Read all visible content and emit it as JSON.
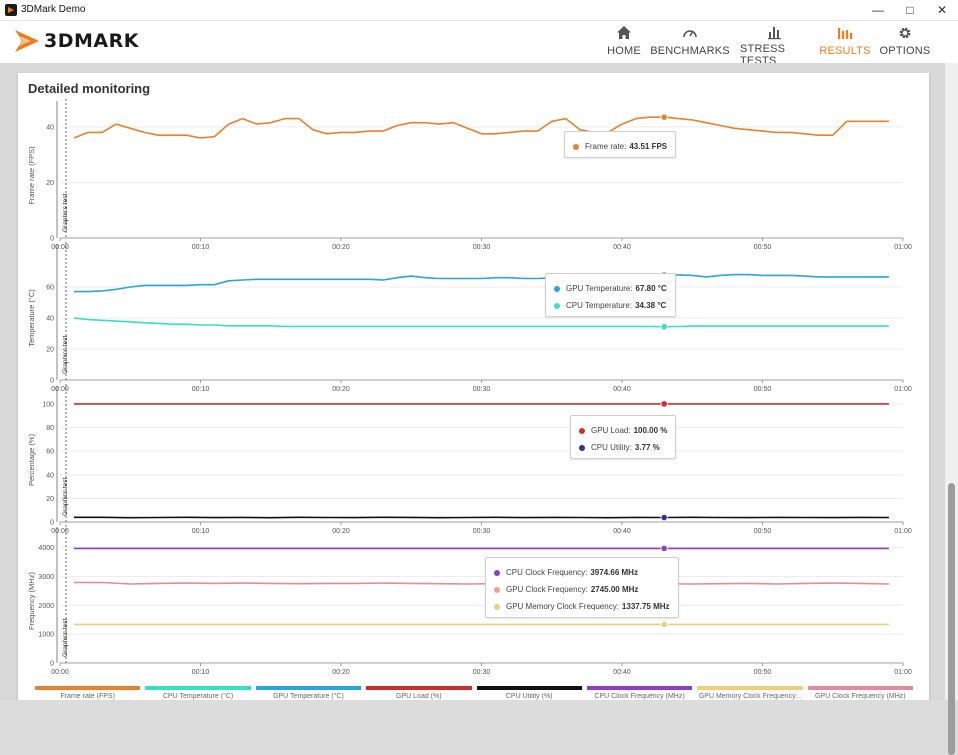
{
  "window": {
    "title": "3DMark Demo"
  },
  "brand": {
    "name": "3DMARK",
    "accent": "#f07d1a"
  },
  "nav": [
    {
      "label": "HOME",
      "icon": "home-icon"
    },
    {
      "label": "BENCHMARKS",
      "icon": "gauge-icon"
    },
    {
      "label": "STRESS TESTS",
      "icon": "bars-icon"
    },
    {
      "label": "RESULTS",
      "icon": "results-icon",
      "active": true
    },
    {
      "label": "OPTIONS",
      "icon": "gear-icon"
    }
  ],
  "page": {
    "title": "Detailed monitoring"
  },
  "chart_data": [
    {
      "type": "line",
      "ylabel": "Frame rate (FPS)",
      "section_label": "Graphics test",
      "ylim": [
        0,
        45
      ],
      "yticks": [
        0,
        20,
        40
      ],
      "xticks": [
        "00:00",
        "00:10",
        "00:20",
        "00:30",
        "00:40",
        "00:50",
        "01:00"
      ],
      "series": [
        {
          "name": "Frame rate",
          "color": "#e9822c",
          "x": [
            1,
            2,
            3,
            4,
            5,
            6,
            7,
            8,
            9,
            10,
            11,
            12,
            13,
            14,
            15,
            16,
            17,
            18,
            19,
            20,
            21,
            22,
            23,
            24,
            25,
            26,
            27,
            28,
            29,
            30,
            31,
            32,
            33,
            34,
            35,
            36,
            37,
            38,
            39,
            40,
            41,
            42,
            43,
            44,
            45,
            46,
            47,
            48,
            49,
            50,
            51,
            52,
            53,
            54,
            55,
            56,
            57,
            58,
            59
          ],
          "y": [
            36,
            38,
            38,
            41,
            39.5,
            38,
            37,
            37,
            37,
            36,
            36.5,
            41,
            43,
            41,
            41.5,
            43,
            43,
            39,
            37.5,
            38,
            38,
            38.5,
            38.5,
            40.5,
            41.5,
            41.5,
            41,
            41.5,
            39.5,
            37.5,
            37.5,
            38,
            38.5,
            38.5,
            42,
            43,
            39,
            38,
            38,
            41,
            43,
            43.5,
            43.51,
            43,
            42.5,
            41.5,
            40.5,
            39.5,
            39,
            38.5,
            38,
            38,
            37.5,
            37,
            37,
            42,
            42,
            42,
            42
          ]
        }
      ],
      "tooltip": [
        {
          "label": "Frame rate:",
          "value": "43.51 FPS",
          "color": "#e9822c"
        }
      ]
    },
    {
      "type": "line",
      "ylabel": "Temperature (°C)",
      "section_label": "Graphics test",
      "ylim": [
        0,
        80
      ],
      "yticks": [
        0,
        20,
        40,
        60
      ],
      "xticks": [
        "00:00",
        "00:10",
        "00:20",
        "00:30",
        "00:40",
        "00:50",
        "01:00"
      ],
      "series": [
        {
          "name": "GPU Temperature",
          "color": "#2aa5de",
          "x": [
            1,
            2,
            3,
            4,
            5,
            6,
            7,
            8,
            9,
            10,
            11,
            12,
            13,
            14,
            15,
            16,
            17,
            18,
            19,
            20,
            21,
            22,
            23,
            24,
            25,
            26,
            27,
            28,
            29,
            30,
            31,
            32,
            33,
            34,
            35,
            36,
            37,
            38,
            39,
            40,
            41,
            42,
            43,
            44,
            45,
            46,
            47,
            48,
            49,
            50,
            51,
            52,
            53,
            54,
            55,
            56,
            57,
            58,
            59
          ],
          "y": [
            57,
            57,
            57.5,
            58.5,
            60,
            61,
            61,
            61,
            61,
            61.5,
            61.5,
            64,
            64.5,
            65,
            65,
            65,
            65,
            65,
            65,
            65,
            65,
            65,
            64.5,
            66,
            67,
            66,
            65.5,
            65.5,
            65.5,
            65.5,
            66,
            66,
            65.5,
            65.5,
            66,
            66,
            67,
            68,
            67,
            67,
            67.5,
            67.5,
            67.8,
            67.8,
            67.5,
            66.5,
            67.5,
            68,
            68,
            67.5,
            67.5,
            67.5,
            67,
            66.5,
            66.5,
            66.5,
            66.5,
            66.5,
            66.5
          ]
        },
        {
          "name": "CPU Temperature",
          "color": "#34e0c8",
          "x": [
            1,
            2,
            3,
            4,
            5,
            6,
            7,
            8,
            9,
            10,
            11,
            12,
            13,
            14,
            15,
            16,
            17,
            18,
            19,
            20,
            21,
            22,
            23,
            24,
            25,
            26,
            27,
            28,
            29,
            30,
            31,
            32,
            33,
            34,
            35,
            36,
            37,
            38,
            39,
            40,
            41,
            42,
            43,
            44,
            45,
            46,
            47,
            48,
            49,
            50,
            51,
            52,
            53,
            54,
            55,
            56,
            57,
            58,
            59
          ],
          "y": [
            40,
            39,
            38.5,
            38,
            37.5,
            37,
            36.5,
            36,
            36,
            35.5,
            35.5,
            35,
            35,
            35,
            35,
            34.5,
            34.5,
            34.5,
            34.5,
            34.5,
            34.5,
            34.5,
            34.5,
            34.5,
            34.5,
            34.5,
            34.5,
            34.5,
            34.5,
            34.5,
            34.5,
            34.5,
            34.5,
            34.5,
            34.5,
            34.5,
            34.5,
            34.5,
            34.5,
            34.5,
            34.5,
            34.5,
            34.38,
            34.5,
            34.8,
            34.8,
            34.8,
            34.8,
            34.8,
            34.8,
            34.8,
            34.8,
            34.8,
            34.8,
            34.8,
            34.8,
            34.8,
            34.8,
            34.8
          ]
        }
      ],
      "tooltip": [
        {
          "label": "GPU Temperature:",
          "value": "67.80 °C",
          "color": "#2aa5de"
        },
        {
          "label": "CPU Temperature:",
          "value": "34.38 °C",
          "color": "#34e0c8"
        }
      ]
    },
    {
      "type": "line",
      "ylabel": "Percentage (%)",
      "section_label": "Graphics test",
      "ylim": [
        0,
        105
      ],
      "yticks": [
        0,
        20,
        40,
        60,
        80,
        100
      ],
      "xticks": [
        "00:00",
        "00:10",
        "00:20",
        "00:30",
        "00:40",
        "00:50",
        "01:00"
      ],
      "series": [
        {
          "name": "GPU Load",
          "color": "#cc2f2f",
          "x": [
            1,
            10,
            20,
            30,
            40,
            43,
            50,
            59
          ],
          "y": [
            100,
            100,
            100,
            100,
            100,
            100,
            100,
            100
          ]
        },
        {
          "name": "CPU Utility",
          "color": "#111111",
          "x": [
            1,
            3,
            5,
            7,
            9,
            11,
            13,
            15,
            17,
            19,
            21,
            23,
            25,
            27,
            29,
            31,
            33,
            35,
            37,
            39,
            41,
            43,
            45,
            47,
            49,
            51,
            53,
            55,
            57,
            59
          ],
          "y": [
            4,
            4,
            3.6,
            3.8,
            4,
            3.7,
            3.9,
            3.6,
            4,
            3.8,
            3.7,
            4,
            3.9,
            3.6,
            3.8,
            4,
            3.7,
            3.9,
            3.8,
            3.6,
            3.9,
            3.77,
            4,
            3.8,
            3.7,
            3.9,
            3.8,
            3.7,
            3.9,
            3.8
          ]
        }
      ],
      "tooltip": [
        {
          "label": "GPU Load:",
          "value": "100.00 %",
          "color": "#cc2f2f"
        },
        {
          "label": "CPU Utility:",
          "value": "3.77 %",
          "color": "#3a2f8a"
        }
      ]
    },
    {
      "type": "line",
      "ylabel": "Frequency (MHz)",
      "section_label": "Graphics test",
      "ylim": [
        0,
        4300
      ],
      "yticks": [
        0,
        1000,
        2000,
        3000,
        4000
      ],
      "xticks": [
        "00:00",
        "00:10",
        "00:20",
        "00:30",
        "00:40",
        "00:50",
        "01:00"
      ],
      "series": [
        {
          "name": "CPU Clock Frequency",
          "color": "#8b3fc9",
          "x": [
            1,
            10,
            20,
            30,
            40,
            43,
            50,
            59
          ],
          "y": [
            3974.66,
            3974.66,
            3974.66,
            3974.66,
            3974.66,
            3974.66,
            3974.66,
            3974.66
          ]
        },
        {
          "name": "GPU Clock Frequency",
          "color": "#e58a9a",
          "x": [
            1,
            3,
            5,
            7,
            9,
            11,
            13,
            15,
            17,
            19,
            21,
            23,
            25,
            27,
            29,
            31,
            33,
            35,
            37,
            39,
            41,
            43,
            45,
            47,
            49,
            51,
            53,
            55,
            57,
            59
          ],
          "y": [
            2790,
            2790,
            2740,
            2760,
            2770,
            2760,
            2770,
            2760,
            2750,
            2760,
            2760,
            2770,
            2760,
            2750,
            2740,
            2750,
            2760,
            2750,
            2760,
            2760,
            2750,
            2745,
            2740,
            2750,
            2760,
            2740,
            2760,
            2770,
            2760,
            2740
          ]
        },
        {
          "name": "GPU Memory Clock Frequency",
          "color": "#efcc7e",
          "x": [
            1,
            10,
            20,
            30,
            40,
            43,
            50,
            59
          ],
          "y": [
            1337.75,
            1337.75,
            1337.75,
            1337.75,
            1337.75,
            1337.75,
            1337.75,
            1337.75
          ]
        }
      ],
      "tooltip": [
        {
          "label": "CPU Clock Frequency:",
          "value": "3974.66 MHz",
          "color": "#8b3fc9"
        },
        {
          "label": "GPU Clock Frequency:",
          "value": "2745.00 MHz",
          "color": "#f0a090"
        },
        {
          "label": "GPU Memory Clock Frequency:",
          "value": "1337.75 MHz",
          "color": "#efcc7e"
        }
      ]
    }
  ],
  "legend": [
    {
      "label": "Frame rate (FPS)",
      "color": "#e9822c"
    },
    {
      "label": "CPU Temperature (°C)",
      "color": "#34e0c8"
    },
    {
      "label": "GPU Temperature (°C)",
      "color": "#2aa5de"
    },
    {
      "label": "GPU Load (%)",
      "color": "#cc2f2f"
    },
    {
      "label": "CPU Utility (%)",
      "color": "#111111"
    },
    {
      "label": "CPU Clock Frequency (MHz)",
      "color": "#8b3fc9"
    },
    {
      "label": "GPU Memory Clock Frequency...",
      "color": "#efcc7e"
    },
    {
      "label": "GPU Clock Frequency (MHz)",
      "color": "#e58a9a"
    }
  ],
  "marker_x": 43
}
